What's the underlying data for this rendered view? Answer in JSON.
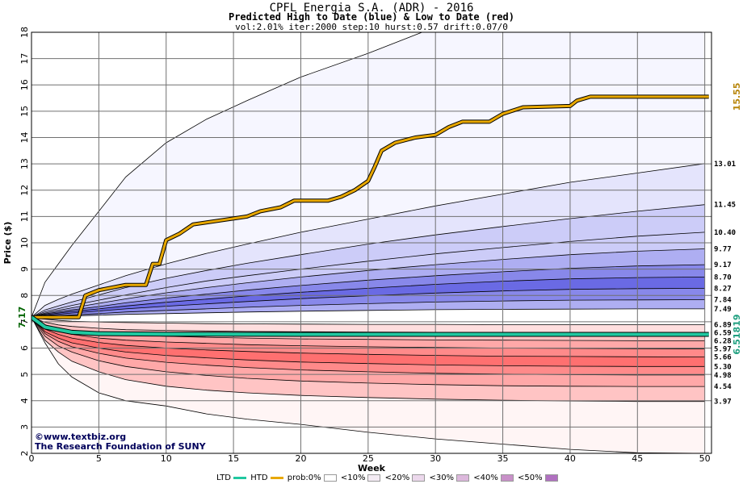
{
  "header": {
    "title": "CPFL Energia S.A. (ADR) - 2016",
    "subtitle": "Predicted High to Date (blue) &  Low to Date (red)",
    "params": "vol:2.01% iter:2000 step:10 hurst:0.57 drift:0.07/0"
  },
  "credits": {
    "line1": "©www.textbiz.org",
    "line2": "The Research Foundation of SUNY"
  },
  "legend": {
    "ltd": "LTD",
    "htd": "HTD",
    "prob0": "prob:0%",
    "p10": "<10%",
    "p20": "<20%",
    "p30": "<30%",
    "p40": "<40%",
    "p50": "<50%"
  },
  "colors": {
    "background": "#ffffff",
    "grid": "#707070",
    "ltd_line": "#20c8a0",
    "htd_line": "#e8a800",
    "blue_bands": [
      "#f6f6ff",
      "#e4e4fc",
      "#ccccf8",
      "#aeaef2",
      "#8888ea",
      "#6a6ae4"
    ],
    "red_bands": [
      "#fff5f5",
      "#ffdede",
      "#ffc4c4",
      "#ffa8a8",
      "#ff8a8a",
      "#ff7070"
    ],
    "start_label": "#006400",
    "end_high_label": "#b8860b",
    "end_low_label": "#20a080"
  },
  "chart_data": {
    "type": "line",
    "xlabel": "Week",
    "ylabel": "Price ($)",
    "xlim": [
      0,
      50.5
    ],
    "ylim": [
      2,
      18
    ],
    "xticks": [
      0,
      5,
      10,
      15,
      20,
      25,
      30,
      35,
      40,
      45,
      50
    ],
    "yticks": [
      2,
      3,
      4,
      5,
      6,
      7,
      8,
      9,
      10,
      11,
      12,
      13,
      14,
      15,
      16,
      17,
      18
    ],
    "grid": true,
    "start_price": 7.17,
    "start_label": "7.17",
    "htd_end_label": "15.55",
    "ltd_end_label": "6.51819",
    "quantile_weeks": [
      0,
      1,
      2,
      3,
      5,
      7,
      10,
      13,
      16,
      20,
      25,
      30,
      35,
      40,
      45,
      50
    ],
    "upper_quantiles": [
      {
        "label": "",
        "values": [
          7.17,
          8.5,
          9.2,
          9.9,
          11.2,
          12.5,
          13.8,
          14.7,
          15.4,
          16.3,
          17.2,
          18.2,
          19.0,
          19.7,
          20.4,
          21.0
        ]
      },
      {
        "label": "13.01",
        "values": [
          7.17,
          7.62,
          7.85,
          8.05,
          8.4,
          8.75,
          9.2,
          9.6,
          9.95,
          10.4,
          10.9,
          11.4,
          11.85,
          12.3,
          12.65,
          13.01
        ]
      },
      {
        "label": "11.45",
        "values": [
          7.17,
          7.45,
          7.6,
          7.75,
          8.02,
          8.3,
          8.65,
          8.95,
          9.22,
          9.55,
          9.95,
          10.3,
          10.62,
          10.92,
          11.2,
          11.45
        ]
      },
      {
        "label": "10.40",
        "values": [
          7.17,
          7.38,
          7.5,
          7.62,
          7.82,
          8.02,
          8.3,
          8.55,
          8.75,
          9.0,
          9.3,
          9.58,
          9.82,
          10.05,
          10.25,
          10.4
        ]
      },
      {
        "label": "9.77",
        "values": [
          7.17,
          7.33,
          7.43,
          7.53,
          7.7,
          7.87,
          8.1,
          8.3,
          8.48,
          8.7,
          8.95,
          9.17,
          9.37,
          9.55,
          9.68,
          9.77
        ]
      },
      {
        "label": "9.17",
        "values": [
          7.17,
          7.3,
          7.37,
          7.45,
          7.58,
          7.72,
          7.9,
          8.05,
          8.2,
          8.38,
          8.58,
          8.75,
          8.9,
          9.03,
          9.12,
          9.17
        ]
      },
      {
        "label": "8.70",
        "values": [
          7.17,
          7.27,
          7.33,
          7.39,
          7.49,
          7.6,
          7.74,
          7.86,
          7.98,
          8.12,
          8.27,
          8.42,
          8.54,
          8.63,
          8.68,
          8.7
        ]
      },
      {
        "label": "8.27",
        "values": [
          7.17,
          7.24,
          7.28,
          7.33,
          7.41,
          7.49,
          7.59,
          7.68,
          7.77,
          7.88,
          7.99,
          8.09,
          8.17,
          8.23,
          8.26,
          8.27
        ]
      },
      {
        "label": "7.84",
        "values": [
          7.17,
          7.2,
          7.23,
          7.26,
          7.31,
          7.37,
          7.43,
          7.49,
          7.55,
          7.62,
          7.69,
          7.75,
          7.79,
          7.82,
          7.83,
          7.84
        ]
      },
      {
        "label": "7.49",
        "values": [
          7.17,
          7.19,
          7.2,
          7.22,
          7.25,
          7.28,
          7.31,
          7.34,
          7.37,
          7.4,
          7.43,
          7.46,
          7.47,
          7.48,
          7.49,
          7.49
        ]
      }
    ],
    "lower_quantiles": [
      {
        "label": "6.89",
        "values": [
          7.17,
          7.1,
          7.05,
          7.02,
          6.99,
          6.97,
          6.95,
          6.93,
          6.92,
          6.91,
          6.9,
          6.9,
          6.89,
          6.89,
          6.89,
          6.89
        ]
      },
      {
        "label": "6.59",
        "values": [
          7.17,
          6.98,
          6.88,
          6.82,
          6.75,
          6.7,
          6.67,
          6.65,
          6.63,
          6.62,
          6.61,
          6.6,
          6.6,
          6.59,
          6.59,
          6.59
        ]
      },
      {
        "label": "6.28",
        "values": [
          7.17,
          6.88,
          6.75,
          6.66,
          6.57,
          6.5,
          6.45,
          6.41,
          6.38,
          6.35,
          6.33,
          6.31,
          6.3,
          6.29,
          6.28,
          6.28
        ]
      },
      {
        "label": "5.97",
        "values": [
          7.17,
          6.8,
          6.63,
          6.52,
          6.38,
          6.3,
          6.23,
          6.18,
          6.13,
          6.09,
          6.05,
          6.02,
          6.0,
          5.99,
          5.98,
          5.97
        ]
      },
      {
        "label": "5.66",
        "values": [
          7.17,
          6.72,
          6.52,
          6.38,
          6.21,
          6.1,
          6.0,
          5.93,
          5.87,
          5.81,
          5.76,
          5.72,
          5.69,
          5.68,
          5.67,
          5.66
        ]
      },
      {
        "label": "5.30",
        "values": [
          7.17,
          6.62,
          6.38,
          6.2,
          6.0,
          5.85,
          5.72,
          5.63,
          5.55,
          5.47,
          5.41,
          5.36,
          5.33,
          5.31,
          5.3,
          5.3
        ]
      },
      {
        "label": "4.98",
        "values": [
          7.17,
          6.55,
          6.25,
          6.05,
          5.8,
          5.62,
          5.46,
          5.35,
          5.26,
          5.17,
          5.1,
          5.04,
          5.01,
          4.99,
          4.98,
          4.98
        ]
      },
      {
        "label": "4.54",
        "values": [
          7.17,
          6.45,
          6.08,
          5.85,
          5.52,
          5.3,
          5.1,
          4.96,
          4.85,
          4.75,
          4.67,
          4.61,
          4.57,
          4.55,
          4.54,
          4.54
        ]
      },
      {
        "label": "3.97",
        "values": [
          7.17,
          6.3,
          5.85,
          5.5,
          5.1,
          4.8,
          4.55,
          4.4,
          4.3,
          4.2,
          4.12,
          4.06,
          4.02,
          3.99,
          3.97,
          3.97
        ]
      },
      {
        "label": "",
        "values": [
          7.17,
          6.2,
          5.4,
          4.9,
          4.3,
          4.0,
          3.8,
          3.5,
          3.3,
          3.1,
          2.8,
          2.55,
          2.35,
          2.15,
          2.02,
          2.0
        ]
      }
    ],
    "htd_path": [
      [
        0,
        7.17
      ],
      [
        3.5,
        7.17
      ],
      [
        4,
        8.0
      ],
      [
        5,
        8.2
      ],
      [
        7,
        8.4
      ],
      [
        8.5,
        8.4
      ],
      [
        9,
        9.2
      ],
      [
        9.5,
        9.2
      ],
      [
        10,
        10.1
      ],
      [
        11,
        10.35
      ],
      [
        12,
        10.7
      ],
      [
        14,
        10.85
      ],
      [
        16,
        11.0
      ],
      [
        17,
        11.2
      ],
      [
        18.5,
        11.35
      ],
      [
        19.5,
        11.6
      ],
      [
        22,
        11.6
      ],
      [
        23,
        11.75
      ],
      [
        24,
        12.0
      ],
      [
        25,
        12.35
      ],
      [
        25.5,
        12.9
      ],
      [
        26,
        13.5
      ],
      [
        27,
        13.8
      ],
      [
        28.5,
        14.0
      ],
      [
        30,
        14.1
      ],
      [
        31,
        14.4
      ],
      [
        32,
        14.6
      ],
      [
        34,
        14.6
      ],
      [
        35,
        14.9
      ],
      [
        36.5,
        15.15
      ],
      [
        40,
        15.2
      ],
      [
        40.5,
        15.4
      ],
      [
        41.5,
        15.55
      ],
      [
        50.3,
        15.55
      ]
    ],
    "ltd_path": [
      [
        0,
        7.17
      ],
      [
        1,
        6.8
      ],
      [
        2,
        6.7
      ],
      [
        3,
        6.6
      ],
      [
        5,
        6.55
      ],
      [
        10,
        6.53
      ],
      [
        20,
        6.52
      ],
      [
        30,
        6.52
      ],
      [
        50.3,
        6.52
      ]
    ]
  }
}
